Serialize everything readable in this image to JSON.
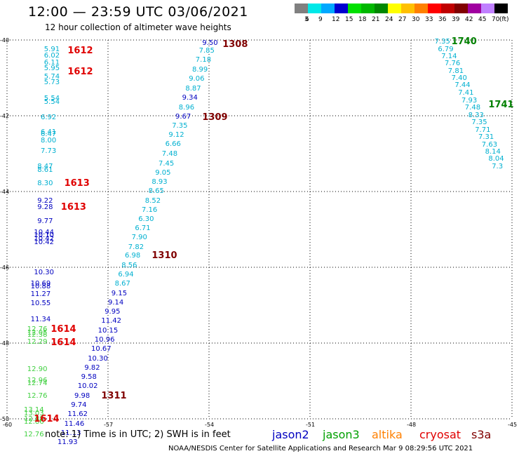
{
  "header": {
    "title": "12:00 — 23:59 UTC 03/06/2021",
    "subtitle": "12 hour collection of altimeter wave heights"
  },
  "colorbar": {
    "unit_label": "(ft)",
    "bins": [
      {
        "label": "3",
        "color": "#808080"
      },
      {
        "label": "6",
        "color": "#00e8e8"
      },
      {
        "label": "9",
        "color": "#00a8ff"
      },
      {
        "label": "12",
        "color": "#0000d0"
      },
      {
        "label": "15",
        "color": "#00e000"
      },
      {
        "label": "18",
        "color": "#00b800"
      },
      {
        "label": "21",
        "color": "#008800"
      },
      {
        "label": "24",
        "color": "#ffff00"
      },
      {
        "label": "27",
        "color": "#ffc000"
      },
      {
        "label": "30",
        "color": "#ff8000"
      },
      {
        "label": "33",
        "color": "#ff0000"
      },
      {
        "label": "36",
        "color": "#c00000"
      },
      {
        "label": "39",
        "color": "#800000"
      },
      {
        "label": "42",
        "color": "#a000a0"
      },
      {
        "label": "45",
        "color": "#c080ff"
      },
      {
        "label": "70",
        "color": "#000000"
      }
    ]
  },
  "map": {
    "lon_range": [
      -60,
      -45
    ],
    "lat_range": [
      -50,
      -40
    ],
    "grid": true,
    "x_ticks": [
      "-60",
      "-57",
      "-54",
      "-51",
      "-48",
      "-45"
    ],
    "y_ticks": [
      "-40",
      "-42",
      "-44",
      "-46",
      "-48",
      "-50"
    ],
    "colors": {
      "cyan": "#00b0d0",
      "blue": "#0000c0",
      "green": "#40d040",
      "red": "#e00000",
      "darkred": "#800000",
      "darkgreen": "#008000"
    },
    "points": [
      {
        "lon": -58.9,
        "lat": -40.16,
        "text": "5.91",
        "c": "cyan"
      },
      {
        "lon": -58.9,
        "lat": -40.33,
        "text": "6.02",
        "c": "cyan"
      },
      {
        "lon": -58.9,
        "lat": -40.52,
        "text": "6.11",
        "c": "cyan"
      },
      {
        "lon": -58.9,
        "lat": -40.66,
        "text": "5.95",
        "c": "cyan"
      },
      {
        "lon": -58.9,
        "lat": -40.88,
        "text": "5.74",
        "c": "cyan"
      },
      {
        "lon": -58.9,
        "lat": -41.03,
        "text": "5.73",
        "c": "cyan"
      },
      {
        "lon": -58.9,
        "lat": -41.46,
        "text": "5.54",
        "c": "cyan"
      },
      {
        "lon": -58.9,
        "lat": -41.55,
        "text": "5.54",
        "c": "cyan"
      },
      {
        "lon": -59.0,
        "lat": -41.96,
        "text": "6.92",
        "c": "cyan"
      },
      {
        "lon": -59.0,
        "lat": -42.35,
        "text": "6.41",
        "c": "cyan"
      },
      {
        "lon": -59.0,
        "lat": -42.41,
        "text": "6.47",
        "c": "cyan"
      },
      {
        "lon": -59.0,
        "lat": -42.57,
        "text": "8.00",
        "c": "cyan"
      },
      {
        "lon": -59.0,
        "lat": -42.86,
        "text": "7.73",
        "c": "cyan"
      },
      {
        "lon": -59.1,
        "lat": -43.25,
        "text": "8.47",
        "c": "cyan"
      },
      {
        "lon": -59.1,
        "lat": -43.35,
        "text": "8.61",
        "c": "cyan"
      },
      {
        "lon": -59.1,
        "lat": -43.71,
        "text": "8.30",
        "c": "cyan"
      },
      {
        "lon": -59.1,
        "lat": -44.16,
        "text": "9.22",
        "c": "blue"
      },
      {
        "lon": -59.1,
        "lat": -44.34,
        "text": "9.28",
        "c": "blue"
      },
      {
        "lon": -59.1,
        "lat": -44.7,
        "text": "9.77",
        "c": "blue"
      },
      {
        "lon": -59.2,
        "lat": -45.0,
        "text": "10.44",
        "c": "blue"
      },
      {
        "lon": -59.2,
        "lat": -45.08,
        "text": "10.10",
        "c": "blue"
      },
      {
        "lon": -59.2,
        "lat": -45.16,
        "text": "10.42",
        "c": "blue"
      },
      {
        "lon": -59.2,
        "lat": -45.26,
        "text": "10.42",
        "c": "blue"
      },
      {
        "lon": -59.2,
        "lat": -46.05,
        "text": "10.30",
        "c": "blue"
      },
      {
        "lon": -59.3,
        "lat": -46.36,
        "text": "10.69",
        "c": "blue"
      },
      {
        "lon": -59.3,
        "lat": -46.43,
        "text": "10.88",
        "c": "blue"
      },
      {
        "lon": -59.3,
        "lat": -46.63,
        "text": "11.27",
        "c": "blue"
      },
      {
        "lon": -59.3,
        "lat": -46.87,
        "text": "10.55",
        "c": "blue"
      },
      {
        "lon": -59.3,
        "lat": -47.3,
        "text": "11.34",
        "c": "blue"
      },
      {
        "lon": -59.4,
        "lat": -47.55,
        "text": "12.76",
        "c": "green"
      },
      {
        "lon": -59.4,
        "lat": -47.64,
        "text": "12.05",
        "c": "green"
      },
      {
        "lon": -59.4,
        "lat": -47.71,
        "text": "12.38",
        "c": "green"
      },
      {
        "lon": -59.4,
        "lat": -47.89,
        "text": "12.29",
        "c": "green"
      },
      {
        "lon": -59.4,
        "lat": -48.62,
        "text": "12.90",
        "c": "green"
      },
      {
        "lon": -59.4,
        "lat": -48.9,
        "text": "12.96",
        "c": "green"
      },
      {
        "lon": -59.4,
        "lat": -48.99,
        "text": "12.74",
        "c": "green"
      },
      {
        "lon": -59.4,
        "lat": -49.31,
        "text": "12.76",
        "c": "green"
      },
      {
        "lon": -59.5,
        "lat": -49.68,
        "text": "13.14",
        "c": "green"
      },
      {
        "lon": -59.5,
        "lat": -49.77,
        "text": "13.03",
        "c": "green"
      },
      {
        "lon": -59.5,
        "lat": -49.92,
        "text": "12.88",
        "c": "green"
      },
      {
        "lon": -59.5,
        "lat": -50.0,
        "text": "12.86",
        "c": "green"
      },
      {
        "lon": -59.5,
        "lat": -50.34,
        "text": "12.76",
        "c": "green"
      },
      {
        "lon": -54.2,
        "lat": -40.0,
        "text": "9.50",
        "c": "blue"
      },
      {
        "lon": -54.3,
        "lat": -40.2,
        "text": "7.85",
        "c": "cyan"
      },
      {
        "lon": -54.4,
        "lat": -40.45,
        "text": "7.18",
        "c": "cyan"
      },
      {
        "lon": -54.5,
        "lat": -40.7,
        "text": "8.99",
        "c": "cyan"
      },
      {
        "lon": -54.6,
        "lat": -40.95,
        "text": "9.06",
        "c": "cyan"
      },
      {
        "lon": -54.7,
        "lat": -41.2,
        "text": "8.87",
        "c": "cyan"
      },
      {
        "lon": -54.8,
        "lat": -41.45,
        "text": "9.34",
        "c": "blue"
      },
      {
        "lon": -54.9,
        "lat": -41.7,
        "text": "8.96",
        "c": "cyan"
      },
      {
        "lon": -55.0,
        "lat": -41.95,
        "text": "9.67",
        "c": "blue"
      },
      {
        "lon": -55.1,
        "lat": -42.18,
        "text": "7.35",
        "c": "cyan"
      },
      {
        "lon": -55.2,
        "lat": -42.43,
        "text": "9.12",
        "c": "cyan"
      },
      {
        "lon": -55.3,
        "lat": -42.67,
        "text": "6.66",
        "c": "cyan"
      },
      {
        "lon": -55.4,
        "lat": -42.92,
        "text": "7.48",
        "c": "cyan"
      },
      {
        "lon": -55.5,
        "lat": -43.18,
        "text": "7.45",
        "c": "cyan"
      },
      {
        "lon": -55.6,
        "lat": -43.42,
        "text": "9.05",
        "c": "cyan"
      },
      {
        "lon": -55.7,
        "lat": -43.66,
        "text": "8.93",
        "c": "cyan"
      },
      {
        "lon": -55.8,
        "lat": -43.91,
        "text": "8.65",
        "c": "cyan"
      },
      {
        "lon": -55.9,
        "lat": -44.16,
        "text": "8.52",
        "c": "cyan"
      },
      {
        "lon": -56.0,
        "lat": -44.4,
        "text": "7.16",
        "c": "cyan"
      },
      {
        "lon": -56.1,
        "lat": -44.64,
        "text": "6.30",
        "c": "cyan"
      },
      {
        "lon": -56.2,
        "lat": -44.89,
        "text": "6.71",
        "c": "cyan"
      },
      {
        "lon": -56.3,
        "lat": -45.13,
        "text": "7.90",
        "c": "cyan"
      },
      {
        "lon": -56.4,
        "lat": -45.38,
        "text": "7.82",
        "c": "cyan"
      },
      {
        "lon": -56.5,
        "lat": -45.62,
        "text": "6.98",
        "c": "cyan"
      },
      {
        "lon": -56.6,
        "lat": -45.87,
        "text": "8.56",
        "c": "cyan"
      },
      {
        "lon": -56.7,
        "lat": -46.12,
        "text": "6.94",
        "c": "cyan"
      },
      {
        "lon": -56.8,
        "lat": -46.36,
        "text": "8.67",
        "c": "cyan"
      },
      {
        "lon": -56.9,
        "lat": -46.61,
        "text": "9.15",
        "c": "blue"
      },
      {
        "lon": -57.0,
        "lat": -46.85,
        "text": "9.14",
        "c": "blue"
      },
      {
        "lon": -57.1,
        "lat": -47.1,
        "text": "9.95",
        "c": "blue"
      },
      {
        "lon": -57.2,
        "lat": -47.34,
        "text": "11.42",
        "c": "blue"
      },
      {
        "lon": -57.3,
        "lat": -47.59,
        "text": "10.15",
        "c": "blue"
      },
      {
        "lon": -57.4,
        "lat": -47.84,
        "text": "10.96",
        "c": "blue"
      },
      {
        "lon": -57.5,
        "lat": -48.08,
        "text": "10.67",
        "c": "blue"
      },
      {
        "lon": -57.6,
        "lat": -48.33,
        "text": "10.30",
        "c": "blue"
      },
      {
        "lon": -57.7,
        "lat": -48.57,
        "text": "9.82",
        "c": "blue"
      },
      {
        "lon": -57.8,
        "lat": -48.82,
        "text": "9.58",
        "c": "blue"
      },
      {
        "lon": -57.9,
        "lat": -49.06,
        "text": "10.02",
        "c": "blue"
      },
      {
        "lon": -58.0,
        "lat": -49.31,
        "text": "9.98",
        "c": "blue"
      },
      {
        "lon": -58.1,
        "lat": -49.55,
        "text": "9.74",
        "c": "blue"
      },
      {
        "lon": -58.2,
        "lat": -49.8,
        "text": "11.62",
        "c": "blue"
      },
      {
        "lon": -58.3,
        "lat": -50.05,
        "text": "11.46",
        "c": "blue"
      },
      {
        "lon": -58.4,
        "lat": -50.29,
        "text": "11.13",
        "c": "blue"
      },
      {
        "lon": -58.5,
        "lat": -50.54,
        "text": "11.93",
        "c": "blue"
      },
      {
        "lon": -47.3,
        "lat": -39.96,
        "text": "7.35",
        "c": "cyan"
      },
      {
        "lon": -47.2,
        "lat": -40.16,
        "text": "6.79",
        "c": "cyan"
      },
      {
        "lon": -47.1,
        "lat": -40.35,
        "text": "7.14",
        "c": "cyan"
      },
      {
        "lon": -47.0,
        "lat": -40.54,
        "text": "7.76",
        "c": "cyan"
      },
      {
        "lon": -46.9,
        "lat": -40.74,
        "text": "7.81",
        "c": "cyan"
      },
      {
        "lon": -46.8,
        "lat": -40.93,
        "text": "7.40",
        "c": "cyan"
      },
      {
        "lon": -46.7,
        "lat": -41.12,
        "text": "7.44",
        "c": "cyan"
      },
      {
        "lon": -46.6,
        "lat": -41.32,
        "text": "7.41",
        "c": "cyan"
      },
      {
        "lon": -46.5,
        "lat": -41.52,
        "text": "7.93",
        "c": "cyan"
      },
      {
        "lon": -46.4,
        "lat": -41.71,
        "text": "7.48",
        "c": "cyan"
      },
      {
        "lon": -46.3,
        "lat": -41.9,
        "text": "8.33",
        "c": "cyan"
      },
      {
        "lon": -46.2,
        "lat": -42.1,
        "text": "7.35",
        "c": "cyan"
      },
      {
        "lon": -46.1,
        "lat": -42.29,
        "text": "7.71",
        "c": "cyan"
      },
      {
        "lon": -46.0,
        "lat": -42.48,
        "text": "7.31",
        "c": "cyan"
      },
      {
        "lon": -45.9,
        "lat": -42.68,
        "text": "7.63",
        "c": "cyan"
      },
      {
        "lon": -45.8,
        "lat": -42.87,
        "text": "8.14",
        "c": "cyan"
      },
      {
        "lon": -45.7,
        "lat": -43.06,
        "text": "8.04",
        "c": "cyan"
      },
      {
        "lon": -45.6,
        "lat": -43.26,
        "text": "7.3",
        "c": "cyan"
      }
    ],
    "pass_labels": [
      {
        "lon": -58.2,
        "lat": -40.2,
        "text": "1612",
        "c": "red"
      },
      {
        "lon": -58.2,
        "lat": -40.75,
        "text": "1612",
        "c": "red"
      },
      {
        "lon": -53.6,
        "lat": -40.04,
        "text": "1308",
        "c": "darkred"
      },
      {
        "lon": -54.2,
        "lat": -41.96,
        "text": "1309",
        "c": "darkred"
      },
      {
        "lon": -58.3,
        "lat": -43.7,
        "text": "1613",
        "c": "red"
      },
      {
        "lon": -58.4,
        "lat": -44.33,
        "text": "1613",
        "c": "red"
      },
      {
        "lon": -55.7,
        "lat": -45.62,
        "text": "1310",
        "c": "darkred"
      },
      {
        "lon": -58.7,
        "lat": -47.55,
        "text": "1614",
        "c": "red"
      },
      {
        "lon": -58.7,
        "lat": -47.9,
        "text": "1614",
        "c": "red"
      },
      {
        "lon": -57.2,
        "lat": -49.31,
        "text": "1311",
        "c": "darkred"
      },
      {
        "lon": -59.2,
        "lat": -49.93,
        "text": "1614",
        "c": "red"
      },
      {
        "lon": -46.8,
        "lat": -39.96,
        "text": "1740",
        "c": "darkgreen"
      },
      {
        "lon": -45.7,
        "lat": -41.63,
        "text": "1741",
        "c": "darkgreen"
      }
    ]
  },
  "note": "note:  1) Time is in UTC;  2) SWH is in feet",
  "legend": [
    {
      "label": "jason2",
      "color": "#0000c0"
    },
    {
      "label": "jason3",
      "color": "#00a000"
    },
    {
      "label": "altika",
      "color": "#ff8000"
    },
    {
      "label": "cryosat",
      "color": "#e00000"
    },
    {
      "label": "s3a",
      "color": "#800000"
    }
  ],
  "footer": "NOAA/NESDIS Center for Satellite Applications and Research    Mar  9 08:29:56 UTC 2021"
}
